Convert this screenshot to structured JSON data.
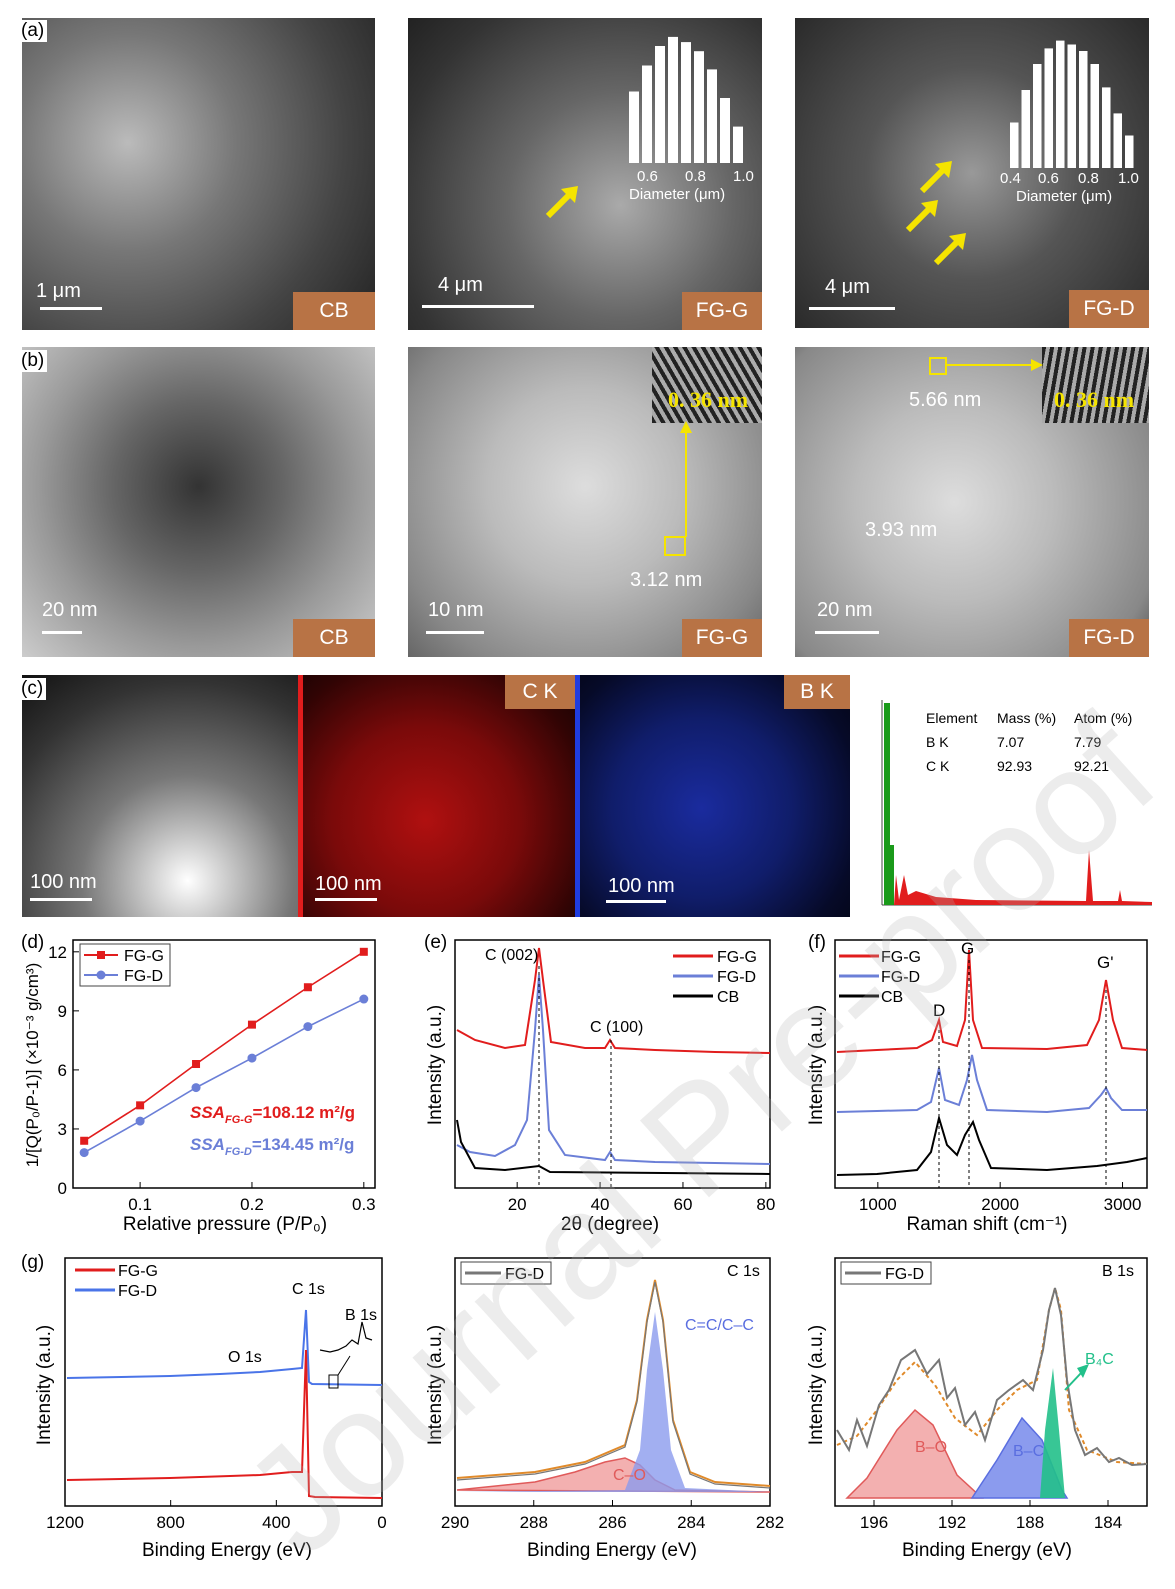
{
  "panel_labels": {
    "a": "(a)",
    "b": "(b)",
    "c": "(c)",
    "d": "(d)",
    "e": "(e)",
    "f": "(f)",
    "g": "(g)"
  },
  "sem": [
    {
      "tag": "CB",
      "scale": "1 μm"
    },
    {
      "tag": "FG-G",
      "scale": "4 μm",
      "inset_ticks": [
        "0.6",
        "0.8",
        "1.0"
      ],
      "inset_xlabel": "Diameter (μm)",
      "inset_bars": [
        0.55,
        0.75,
        0.9,
        0.97,
        0.93,
        0.86,
        0.72,
        0.5,
        0.28
      ]
    },
    {
      "tag": "FG-D",
      "scale": "4 μm",
      "inset_ticks": [
        "0.4",
        "0.6",
        "0.8",
        "1.0"
      ],
      "inset_xlabel": "Diameter (μm)",
      "inset_bars": [
        0.35,
        0.6,
        0.8,
        0.92,
        0.98,
        0.95,
        0.9,
        0.8,
        0.62,
        0.42,
        0.25
      ]
    }
  ],
  "tem": [
    {
      "tag": "CB",
      "scale": "20 nm"
    },
    {
      "tag": "FG-G",
      "scale": "10 nm",
      "spacing": "0. 36  nm",
      "thickness": "3.12 nm"
    },
    {
      "tag": "FG-D",
      "scale": "20 nm",
      "spacing": "0. 36  nm",
      "thickness1": "5.66 nm",
      "thickness2": "3.93 nm"
    }
  ],
  "eds": {
    "haadf_scale": "100 nm",
    "c_map": {
      "label": "C  K",
      "scale": "100 nm"
    },
    "b_map": {
      "label": "B  K",
      "scale": "100 nm"
    },
    "table": {
      "headers": [
        "Element",
        "Mass (%)",
        "Atom (%)"
      ],
      "rows": [
        [
          "B K",
          "7.07",
          "7.79"
        ],
        [
          "C K",
          "92.93",
          "92.21"
        ]
      ]
    }
  },
  "chart_data": [
    {
      "type": "line",
      "panel": "d",
      "xlabel": "Relative pressure (P/P₀)",
      "ylabel": "1/[Q(P₀/P-1)] (×10⁻³ g/cm³)",
      "xlim": [
        0.04,
        0.31
      ],
      "ylim": [
        0,
        12.6
      ],
      "xticks": [
        "0.1",
        "0.2",
        "0.3"
      ],
      "yticks": [
        "0",
        "3",
        "6",
        "9",
        "12"
      ],
      "series": [
        {
          "name": "FG-G",
          "color": "#e11d1d",
          "x": [
            0.05,
            0.1,
            0.15,
            0.2,
            0.25,
            0.3
          ],
          "y": [
            2.4,
            4.2,
            6.3,
            8.3,
            10.2,
            12.0
          ]
        },
        {
          "name": "FG-D",
          "color": "#6b7fd7",
          "x": [
            0.05,
            0.1,
            0.15,
            0.2,
            0.25,
            0.3
          ],
          "y": [
            1.8,
            3.4,
            5.1,
            6.6,
            8.2,
            9.6
          ]
        }
      ],
      "annotations": [
        {
          "lhs": "SSA",
          "sub": "FG-G",
          "rhs": "=108.12 m²/g",
          "color": "#e11d1d"
        },
        {
          "lhs": "SSA",
          "sub": "FG-D",
          "rhs": "=134.45 m²/g",
          "color": "#6b7fd7"
        }
      ]
    },
    {
      "type": "line",
      "panel": "e",
      "xlabel": "2θ (degree)",
      "ylabel": "Intensity (a.u.)",
      "xlim": [
        5,
        81
      ],
      "xticks": [
        "20",
        "40",
        "60",
        "80"
      ],
      "peaks": [
        {
          "label": "C (002)",
          "x": 26.5
        },
        {
          "label": "C (100)",
          "x": 43.5
        }
      ],
      "series": [
        {
          "name": "FG-G",
          "color": "#e11d1d"
        },
        {
          "name": "FG-D",
          "color": "#6b7fd7"
        },
        {
          "name": "CB",
          "color": "#000000"
        }
      ]
    },
    {
      "type": "line",
      "panel": "f",
      "xlabel": "Raman shift (cm⁻¹)",
      "ylabel": "Intensity (a.u.)",
      "xlim": [
        650,
        3200
      ],
      "xticks": [
        "1000",
        "2000",
        "3000"
      ],
      "peaks": [
        {
          "label": "D",
          "x": 1350
        },
        {
          "label": "G",
          "x": 1580
        },
        {
          "label": "G'",
          "x": 2700
        }
      ],
      "series": [
        {
          "name": "FG-G",
          "color": "#e11d1d"
        },
        {
          "name": "FG-D",
          "color": "#6b7fd7"
        },
        {
          "name": "CB",
          "color": "#000000"
        }
      ]
    },
    {
      "type": "line",
      "panel": "g1",
      "xlabel": "Binding Energy (eV)",
      "ylabel": "Intensity (a.u.)",
      "xlim": [
        1200,
        0
      ],
      "xticks": [
        "1200",
        "800",
        "400",
        "0"
      ],
      "peaks": [
        {
          "label": "O 1s",
          "x": 532
        },
        {
          "label": "C 1s",
          "x": 285
        },
        {
          "label": "B 1s",
          "x": 188
        }
      ],
      "series": [
        {
          "name": "FG-G",
          "color": "#e11d1d"
        },
        {
          "name": "FG-D",
          "color": "#4a74e8"
        }
      ]
    },
    {
      "type": "line",
      "panel": "g2",
      "title": "C 1s",
      "xlabel": "Binding Energy (eV)",
      "ylabel": "Intensity (a.u.)",
      "xlim": [
        290,
        282
      ],
      "xticks": [
        "290",
        "288",
        "286",
        "284",
        "282"
      ],
      "components": [
        {
          "label": "C=C/C–C",
          "center": 284.8,
          "color": "#5a6ee0"
        },
        {
          "label": "C–O",
          "center": 285.8,
          "color": "#e05a5a"
        }
      ],
      "series": [
        {
          "name": "FG-D",
          "color": "#666666"
        }
      ]
    },
    {
      "type": "line",
      "panel": "g3",
      "title": "B 1s",
      "xlabel": "Binding Energy (eV)",
      "ylabel": "Intensity (a.u.)",
      "xlim": [
        198,
        182
      ],
      "xticks": [
        "196",
        "192",
        "188",
        "184"
      ],
      "components": [
        {
          "label": "B–O",
          "center": 192.5,
          "color": "#e05a5a"
        },
        {
          "label": "B–C",
          "center": 188.2,
          "color": "#5a6ee0"
        },
        {
          "label": "B₄C",
          "center": 186.5,
          "color": "#22c08a"
        }
      ],
      "series": [
        {
          "name": "FG-D",
          "color": "#666666"
        }
      ]
    }
  ],
  "watermark": "Journal Pre-proof"
}
